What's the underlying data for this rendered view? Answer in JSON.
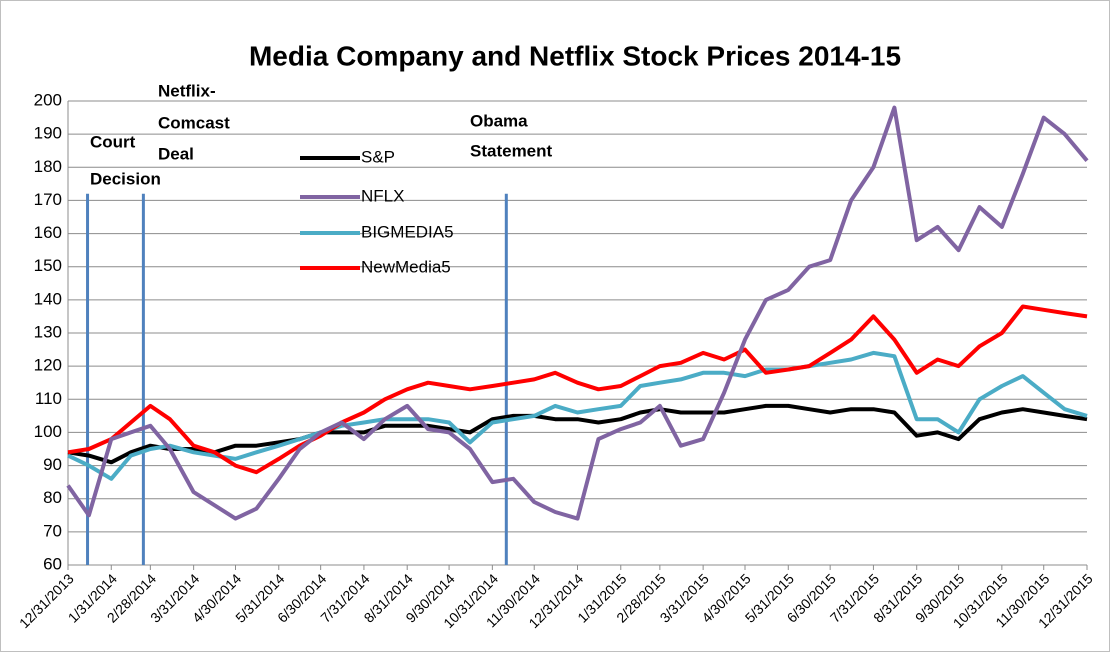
{
  "chart_data": {
    "type": "line",
    "title": "Media Company and Netflix Stock Prices  2014-15",
    "x": [
      "12/31/2013",
      "1/15/2014",
      "1/31/2014",
      "2/14/2014",
      "2/28/2014",
      "3/14/2014",
      "3/31/2014",
      "4/15/2014",
      "4/30/2014",
      "5/15/2014",
      "5/31/2014",
      "6/15/2014",
      "6/30/2014",
      "7/15/2014",
      "7/31/2014",
      "8/15/2014",
      "8/31/2014",
      "9/15/2014",
      "9/30/2014",
      "10/15/2014",
      "10/31/2014",
      "11/15/2014",
      "11/30/2014",
      "12/15/2014",
      "12/31/2014",
      "1/15/2015",
      "1/31/2015",
      "2/14/2015",
      "2/28/2015",
      "3/15/2015",
      "3/31/2015",
      "4/15/2015",
      "4/30/2015",
      "5/15/2015",
      "5/31/2015",
      "6/15/2015",
      "6/30/2015",
      "7/15/2015",
      "7/31/2015",
      "8/15/2015",
      "8/31/2015",
      "9/15/2015",
      "9/30/2015",
      "10/15/2015",
      "10/31/2015",
      "11/15/2015",
      "11/30/2015",
      "12/15/2015",
      "12/31/2015"
    ],
    "series": [
      {
        "name": "S&P",
        "color": "#000000",
        "values": [
          94,
          93,
          91,
          94,
          96,
          95,
          95,
          94,
          96,
          96,
          97,
          98,
          100,
          100,
          100,
          102,
          102,
          102,
          101,
          100,
          104,
          105,
          105,
          104,
          104,
          103,
          104,
          106,
          107,
          106,
          106,
          106,
          107,
          108,
          108,
          107,
          106,
          107,
          107,
          106,
          99,
          100,
          98,
          104,
          106,
          107,
          106,
          105,
          104
        ]
      },
      {
        "name": "NFLX",
        "color": "#8064a2",
        "values": [
          84,
          75,
          98,
          100,
          102,
          95,
          82,
          78,
          74,
          77,
          86,
          95,
          100,
          103,
          98,
          104,
          108,
          101,
          100,
          95,
          85,
          86,
          79,
          76,
          74,
          98,
          101,
          103,
          108,
          96,
          98,
          112,
          128,
          140,
          143,
          150,
          152,
          170,
          180,
          198,
          158,
          162,
          155,
          168,
          162,
          178,
          195,
          190,
          182
        ]
      },
      {
        "name": "BIGMEDIA5",
        "color": "#4bacc6",
        "values": [
          93,
          90,
          86,
          93,
          95,
          96,
          94,
          93,
          92,
          94,
          96,
          98,
          100,
          102,
          103,
          104,
          104,
          104,
          103,
          97,
          103,
          104,
          105,
          108,
          106,
          107,
          108,
          114,
          115,
          116,
          118,
          118,
          117,
          119,
          119,
          120,
          121,
          122,
          124,
          123,
          104,
          104,
          100,
          110,
          114,
          117,
          112,
          107,
          105
        ]
      },
      {
        "name": "NewMedia5",
        "color": "#ff0000",
        "values": [
          94,
          95,
          98,
          103,
          108,
          104,
          96,
          94,
          90,
          88,
          92,
          96,
          99,
          103,
          106,
          110,
          113,
          115,
          114,
          113,
          114,
          115,
          116,
          118,
          115,
          113,
          114,
          117,
          120,
          121,
          124,
          122,
          125,
          118,
          119,
          120,
          124,
          128,
          135,
          128,
          118,
          122,
          120,
          126,
          130,
          138,
          137,
          136,
          135
        ]
      }
    ],
    "xticks": [
      "12/31/2013",
      "1/31/2014",
      "2/28/2014",
      "3/31/2014",
      "4/30/2014",
      "5/31/2014",
      "6/30/2014",
      "7/31/2014",
      "8/31/2014",
      "9/30/2014",
      "10/31/2014",
      "11/30/2014",
      "12/31/2014",
      "1/31/2015",
      "2/28/2015",
      "3/31/2015",
      "4/30/2015",
      "5/31/2015",
      "6/30/2015",
      "7/31/2015",
      "8/31/2015",
      "9/30/2015",
      "10/31/2015",
      "11/30/2015",
      "12/31/2015"
    ],
    "ylim": [
      60,
      200
    ],
    "yticks": [
      60,
      70,
      80,
      90,
      100,
      110,
      120,
      130,
      140,
      150,
      160,
      170,
      180,
      190,
      200
    ],
    "grid": true,
    "annotations": [
      {
        "lines": [
          "Court",
          "Decision"
        ],
        "x": "1/14/2014"
      },
      {
        "lines": [
          "Netflix-",
          "Comcast",
          "Deal"
        ],
        "x": "2/23/2014"
      },
      {
        "lines": [
          "Obama",
          "Statement"
        ],
        "x": "11/10/2014"
      }
    ]
  }
}
